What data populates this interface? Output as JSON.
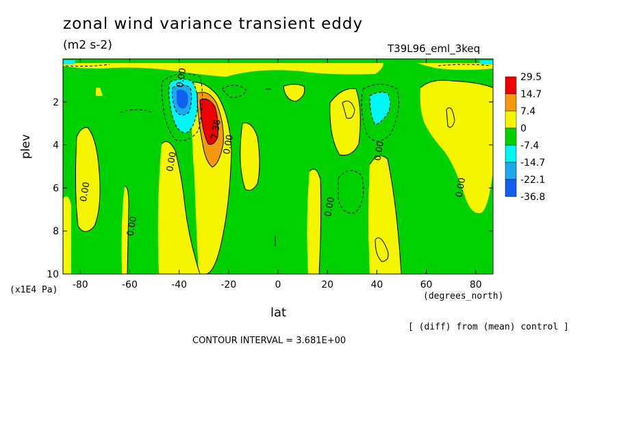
{
  "chart_data": {
    "type": "contour",
    "title": "zonal wind variance transient eddy",
    "units": "(m2 s-2)",
    "run_label": "T39L96_eml_3keq",
    "xlabel": "lat",
    "xunits": "(degrees_north)",
    "ylabel": "plev",
    "yunits": "(x1E4 Pa)",
    "x_range": [
      -87,
      87
    ],
    "y_range": [
      0,
      10
    ],
    "y_inverted": true,
    "x_ticks": [
      -80,
      -60,
      -40,
      -20,
      0,
      20,
      40,
      60,
      80
    ],
    "x_tick_labels": [
      "-80",
      "-60",
      "-40",
      "-20",
      "0",
      "20",
      "40",
      "60",
      "80"
    ],
    "y_ticks": [
      2,
      4,
      6,
      8,
      10
    ],
    "y_tick_labels": [
      "2",
      "4",
      "6",
      "8",
      "10"
    ],
    "legend": {
      "placement": "right",
      "levels": [
        {
          "label": "29.5",
          "color": "#ee0000"
        },
        {
          "label": "14.7",
          "color": "#f59a10"
        },
        {
          "label": "7.4",
          "color": "#f5f500"
        },
        {
          "label": "0",
          "color": "#00d000"
        },
        {
          "label": "-7.4",
          "color": "#00f5f5"
        },
        {
          "label": "-14.7",
          "color": "#1ea8f0"
        },
        {
          "label": "-22.1",
          "color": "#1060f0"
        },
        {
          "label": "-36.8",
          "color": ""
        }
      ]
    },
    "contour_labels": [
      {
        "text": "0.00",
        "lat": -38,
        "plev": 0.9
      },
      {
        "text": "7.36",
        "lat": -24,
        "plev": 3.3
      },
      {
        "text": "0.00",
        "lat": -19,
        "plev": 4.0
      },
      {
        "text": "0.00",
        "lat": -42,
        "plev": 4.8
      },
      {
        "text": "0.00",
        "lat": -77,
        "plev": 6.2
      },
      {
        "text": "0.00",
        "lat": -58,
        "plev": 7.8
      },
      {
        "text": "0.00",
        "lat": 22,
        "plev": 6.9
      },
      {
        "text": "0.00",
        "lat": 42,
        "plev": 4.3
      },
      {
        "text": "0.00",
        "lat": 75,
        "plev": 6.0
      }
    ],
    "grid": false
  },
  "difference_note": "[ (diff) from (mean) control ]",
  "contour_interval": "CONTOUR INTERVAL = 3.681E+00"
}
